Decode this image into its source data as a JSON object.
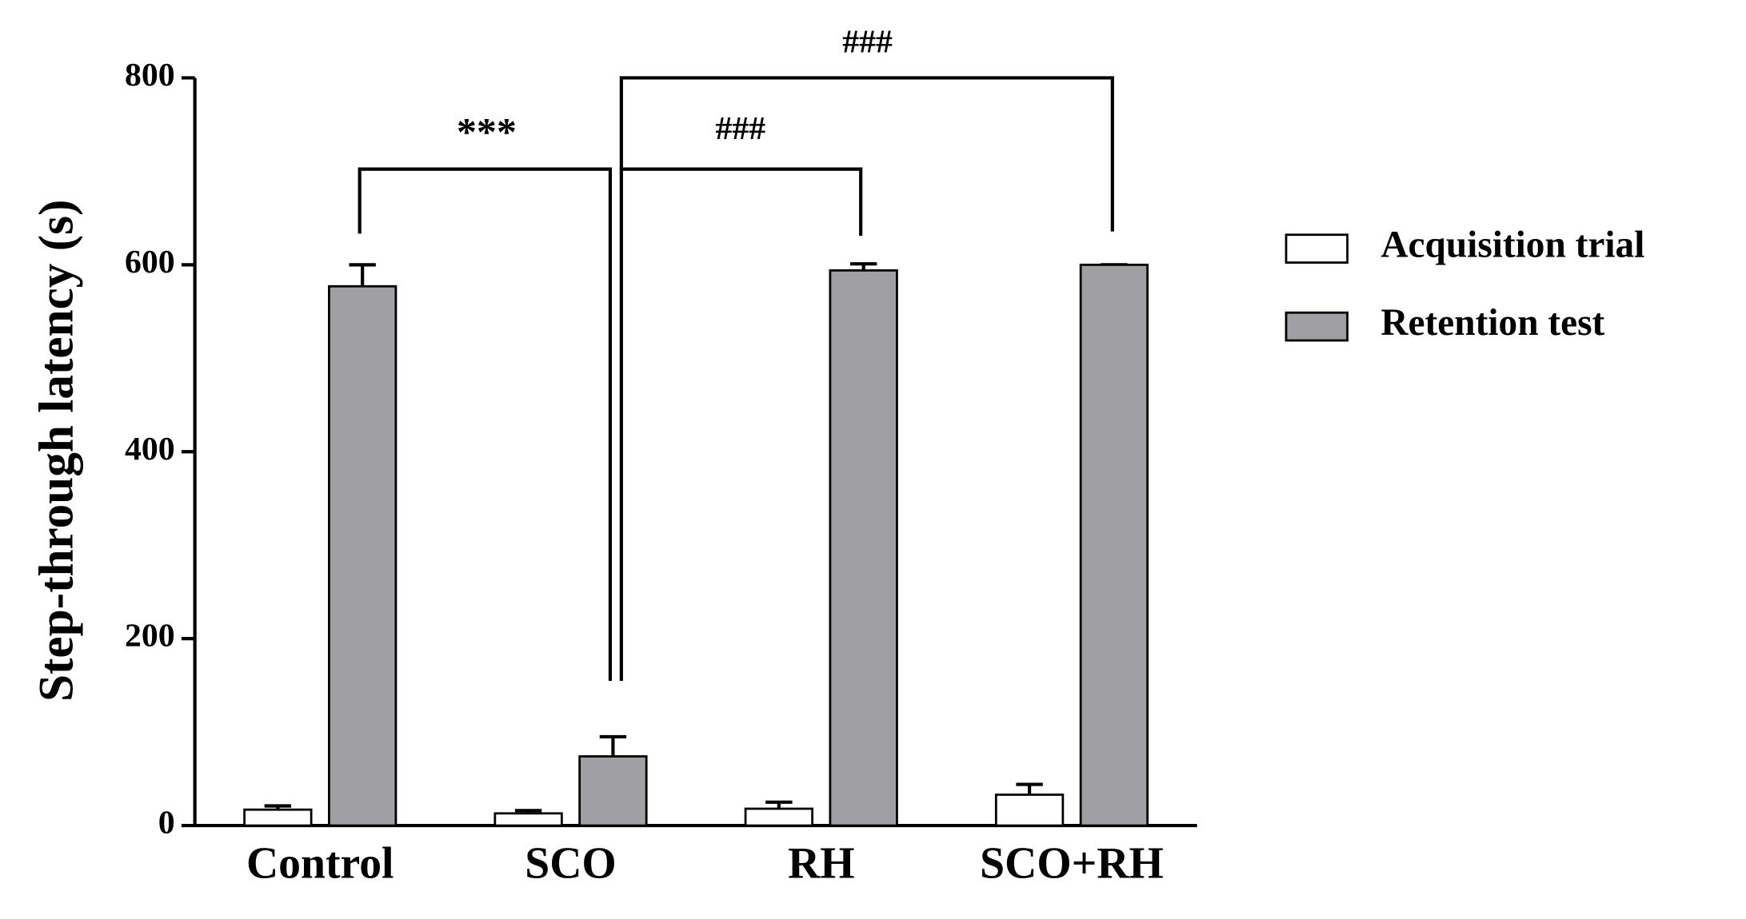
{
  "chart_data": {
    "type": "bar",
    "y_label": "Step-through latency (s)",
    "categories": [
      "Control",
      "SCO",
      "RH",
      "SCO+RH"
    ],
    "series": [
      {
        "name": "Acquisition trial",
        "color": "#ffffff",
        "values": [
          17,
          13,
          18,
          33
        ],
        "errors": [
          4,
          3,
          7,
          11
        ]
      },
      {
        "name": "Retention test",
        "color": "#a0a0a4",
        "values": [
          577,
          74,
          594,
          600
        ],
        "errors": [
          23,
          21,
          7,
          0
        ]
      }
    ],
    "ylim": [
      0,
      800
    ],
    "yticks": [
      0,
      200,
      400,
      600,
      800
    ],
    "annotations": [
      "***",
      "###",
      "###"
    ],
    "legend": "right",
    "grid": false
  }
}
